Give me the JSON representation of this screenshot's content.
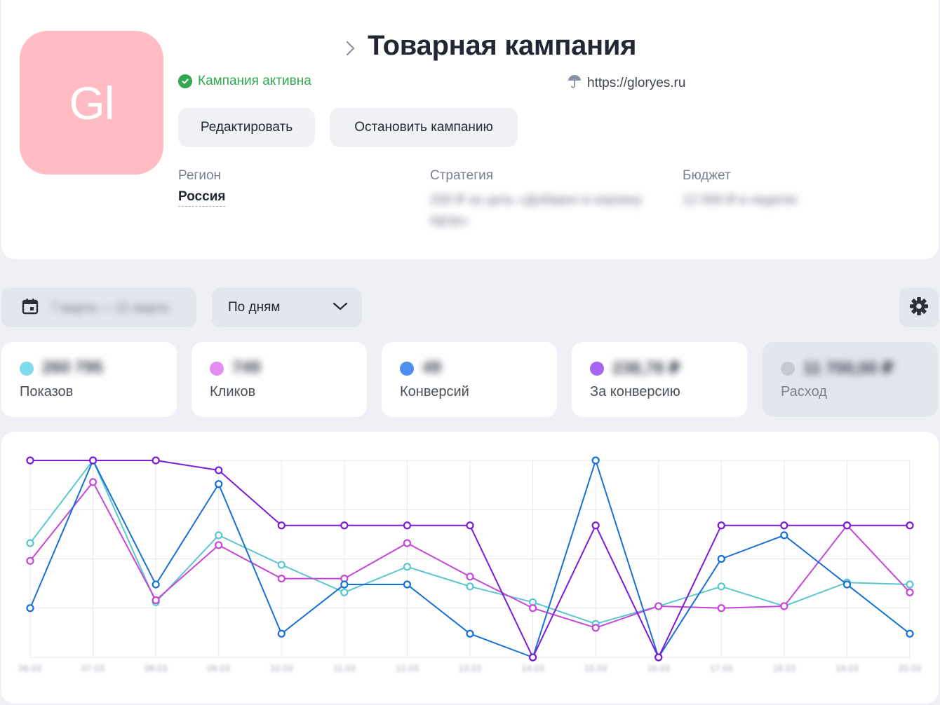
{
  "campaign": {
    "avatar_initials": "Gl",
    "title": "Товарная кампания",
    "status": "Кампания активна",
    "site_url": "https://gloryes.ru",
    "edit_button": "Редактировать",
    "stop_button": "Остановить кампанию"
  },
  "details": {
    "region_label": "Регион",
    "region_value": "Россия",
    "strategy_label": "Стратегия",
    "strategy_value": "200 ₽ за цель «Добавил в корзину NEW»",
    "budget_label": "Бюджет",
    "budget_value": "12 000 ₽ в неделю"
  },
  "toolbar": {
    "date_range": "7 марта — 21 марта",
    "grouping": "По дням"
  },
  "metrics": [
    {
      "label": "Показов",
      "value": "260 795",
      "color": "#7fdcec",
      "active": true
    },
    {
      "label": "Кликов",
      "value": "749",
      "color": "#e58cf4",
      "active": true
    },
    {
      "label": "Конверсий",
      "value": "49",
      "color": "#4d8ff0",
      "active": true
    },
    {
      "label": "За конверсию",
      "value": "238,78 ₽",
      "color": "#a466f0",
      "active": true
    },
    {
      "label": "Расход",
      "value": "11 700,00 ₽",
      "color": "#c6cad4",
      "active": false
    }
  ],
  "chart_data": {
    "type": "line",
    "categories": [
      "06.03",
      "07.03",
      "08.03",
      "09.03",
      "10.03",
      "11.03",
      "12.03",
      "13.03",
      "14.03",
      "15.03",
      "16.03",
      "17.03",
      "18.03",
      "19.03",
      "20.03"
    ],
    "ylim": [
      0,
      1
    ],
    "grid": true,
    "series": [
      {
        "color": "#5bc6cf",
        "values": [
          0.58,
          1.0,
          0.28,
          0.62,
          0.47,
          0.33,
          0.46,
          0.36,
          0.28,
          0.17,
          0.26,
          0.36,
          0.26,
          0.38,
          0.37
        ]
      },
      {
        "color": "#c646d8",
        "values": [
          0.49,
          0.89,
          0.29,
          0.57,
          0.4,
          0.4,
          0.58,
          0.41,
          0.25,
          0.15,
          0.26,
          0.25,
          0.26,
          0.67,
          0.33
        ]
      },
      {
        "color": "#1670d6",
        "values": [
          0.25,
          1.0,
          0.37,
          0.88,
          0.12,
          0.37,
          0.37,
          0.12,
          0.0,
          1.0,
          0.0,
          0.5,
          0.62,
          0.37,
          0.12
        ]
      },
      {
        "color": "#7c1ad6",
        "values": [
          1.0,
          1.0,
          1.0,
          0.95,
          0.67,
          0.67,
          0.67,
          0.67,
          0.0,
          0.67,
          0.0,
          0.67,
          0.67,
          0.67,
          0.67
        ]
      }
    ]
  }
}
